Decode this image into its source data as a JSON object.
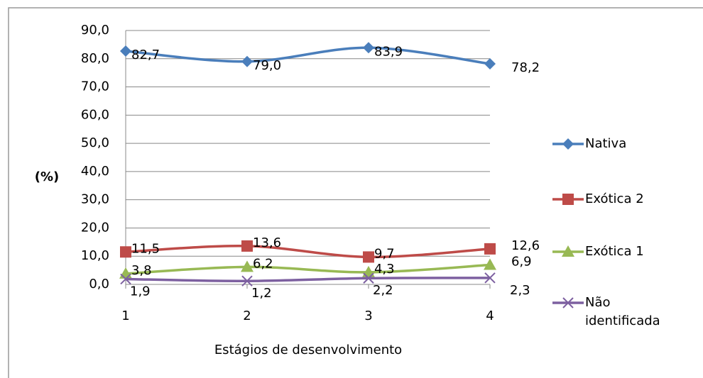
{
  "chart_data": {
    "type": "line",
    "y_label": "(%)",
    "x_label": "Estágios de desenvolvimento",
    "categories": [
      "1",
      "2",
      "3",
      "4"
    ],
    "ylim": [
      0,
      90
    ],
    "yticks": [
      {
        "value": 0,
        "label": "0,0"
      },
      {
        "value": 10,
        "label": "10,0"
      },
      {
        "value": 20,
        "label": "20,0"
      },
      {
        "value": 30,
        "label": "30,0"
      },
      {
        "value": 40,
        "label": "40,0"
      },
      {
        "value": 50,
        "label": "50,0"
      },
      {
        "value": 60,
        "label": "60,0"
      },
      {
        "value": 70,
        "label": "70,0"
      },
      {
        "value": 80,
        "label": "80,0"
      },
      {
        "value": 90,
        "label": "90,0"
      }
    ],
    "grid": true,
    "smooth": true,
    "legend": "right",
    "series": [
      {
        "name": "Nativa",
        "color": "#4a7ebb",
        "marker": "diamond",
        "values": [
          82.7,
          79.0,
          83.9,
          78.2
        ],
        "value_labels": [
          "82,7",
          "79,0",
          "83,9",
          "78,2"
        ]
      },
      {
        "name": "Exótica 2",
        "color": "#be4b48",
        "marker": "square",
        "values": [
          11.5,
          13.6,
          9.7,
          12.6
        ],
        "value_labels": [
          "11,5",
          "13,6",
          "9,7",
          "12,6"
        ]
      },
      {
        "name": "Exótica 1",
        "color": "#98b954",
        "marker": "triangle",
        "values": [
          3.8,
          6.2,
          4.3,
          6.9
        ],
        "value_labels": [
          "3,8",
          "6,2",
          "4,3",
          "6,9"
        ]
      },
      {
        "name": "Não identificada",
        "color": "#7d60a0",
        "marker": "x",
        "values": [
          1.9,
          1.2,
          2.2,
          2.3
        ],
        "value_labels": [
          "1,9",
          "1,2",
          "2,2",
          "2,3"
        ]
      }
    ]
  }
}
